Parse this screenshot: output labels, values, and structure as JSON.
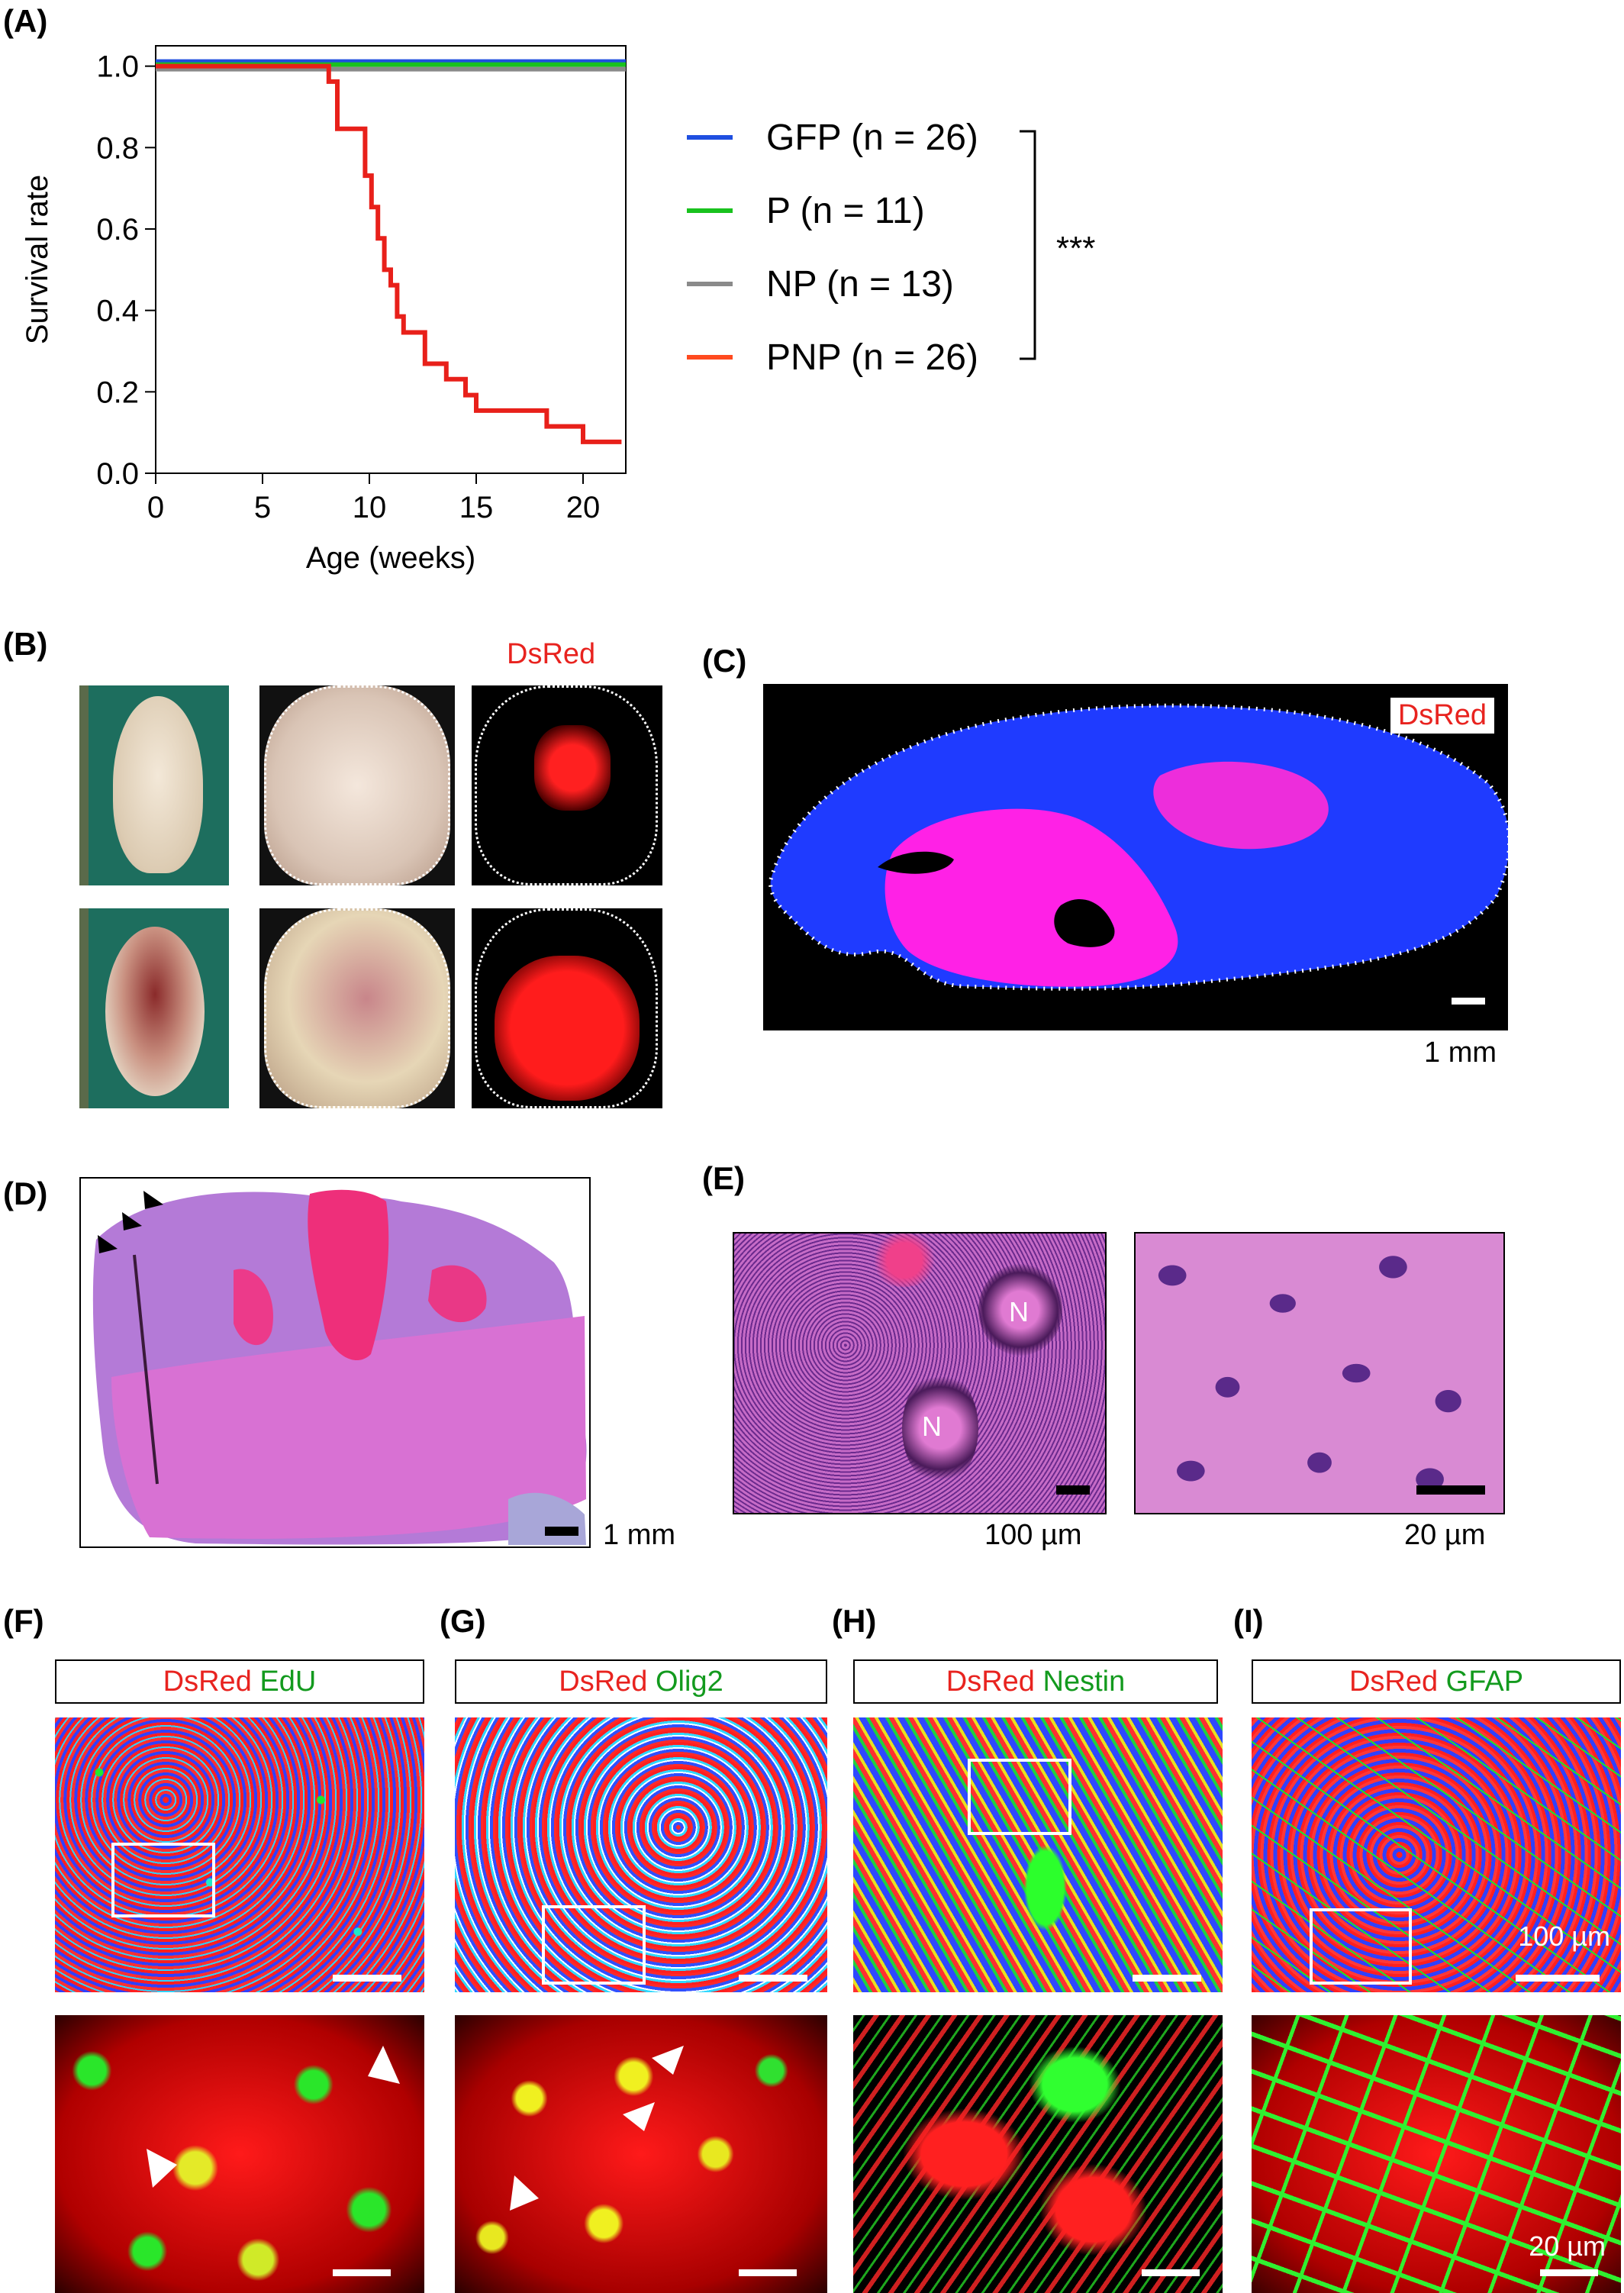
{
  "panels": {
    "A": "(A)",
    "B": "(B)",
    "C": "(C)",
    "D": "(D)",
    "E": "(E)",
    "F": "(F)",
    "G": "(G)",
    "H": "(H)",
    "I": "(I)"
  },
  "chart_data": {
    "type": "line",
    "title": "",
    "xlabel": "Age (weeks)",
    "ylabel": "Survival rate",
    "xlim": [
      0,
      22
    ],
    "ylim": [
      0,
      1.05
    ],
    "xticks": [
      "0",
      "5",
      "10",
      "15",
      "20"
    ],
    "yticks": [
      "0.0",
      "0.2",
      "0.4",
      "0.6",
      "0.8",
      "1.0"
    ],
    "legend_position": "right",
    "series": [
      {
        "name": "GFP (n = 26)",
        "color": "#1f4fe0",
        "x": [
          0,
          22
        ],
        "y": [
          1.0,
          1.0
        ]
      },
      {
        "name": "P (n = 11)",
        "color": "#19c21e",
        "x": [
          0,
          22
        ],
        "y": [
          1.0,
          1.0
        ]
      },
      {
        "name": "NP (n = 13)",
        "color": "#8a8a8a",
        "x": [
          0,
          22
        ],
        "y": [
          1.0,
          1.0
        ]
      },
      {
        "name": "PNP (n = 26)",
        "color": "#ff4a1f",
        "x": [
          0,
          8.1,
          8.1,
          8.5,
          8.5,
          9.8,
          9.8,
          10.1,
          10.1,
          10.4,
          10.4,
          10.7,
          10.7,
          11.0,
          11.0,
          11.3,
          11.3,
          11.6,
          11.6,
          12.6,
          12.6,
          13.6,
          13.6,
          14.5,
          14.5,
          15.0,
          15.0,
          18.3,
          18.3,
          20.0,
          20.0,
          21.8
        ],
        "y": [
          1.0,
          1.0,
          0.962,
          0.962,
          0.846,
          0.846,
          0.731,
          0.731,
          0.654,
          0.654,
          0.577,
          0.577,
          0.5,
          0.5,
          0.462,
          0.462,
          0.385,
          0.385,
          0.346,
          0.346,
          0.269,
          0.269,
          0.231,
          0.231,
          0.192,
          0.192,
          0.154,
          0.154,
          0.115,
          0.115,
          0.077,
          0.077
        ]
      }
    ],
    "annotation": "***"
  },
  "B": {
    "dsred": "DsRed"
  },
  "C": {
    "dsred": "DsRed",
    "scale": "1 mm"
  },
  "D": {
    "scale": "1 mm"
  },
  "E": {
    "n_label": "N",
    "scale_left": "100 µm",
    "scale_right": "20 µm"
  },
  "F": {
    "red": "DsRed",
    "green": "EdU"
  },
  "G": {
    "red": "DsRed",
    "green": "Olig2"
  },
  "H": {
    "red": "DsRed",
    "green": "Nestin"
  },
  "I": {
    "red": "DsRed",
    "green": "GFAP",
    "scale_top": "100 µm",
    "scale_bottom": "20 µm"
  },
  "colors": {
    "dsred_red": "#ff1a1a",
    "nuclei_blue": "#1a2bff",
    "he_pink": "#d75fc8",
    "he_purple": "#8a54c8"
  }
}
